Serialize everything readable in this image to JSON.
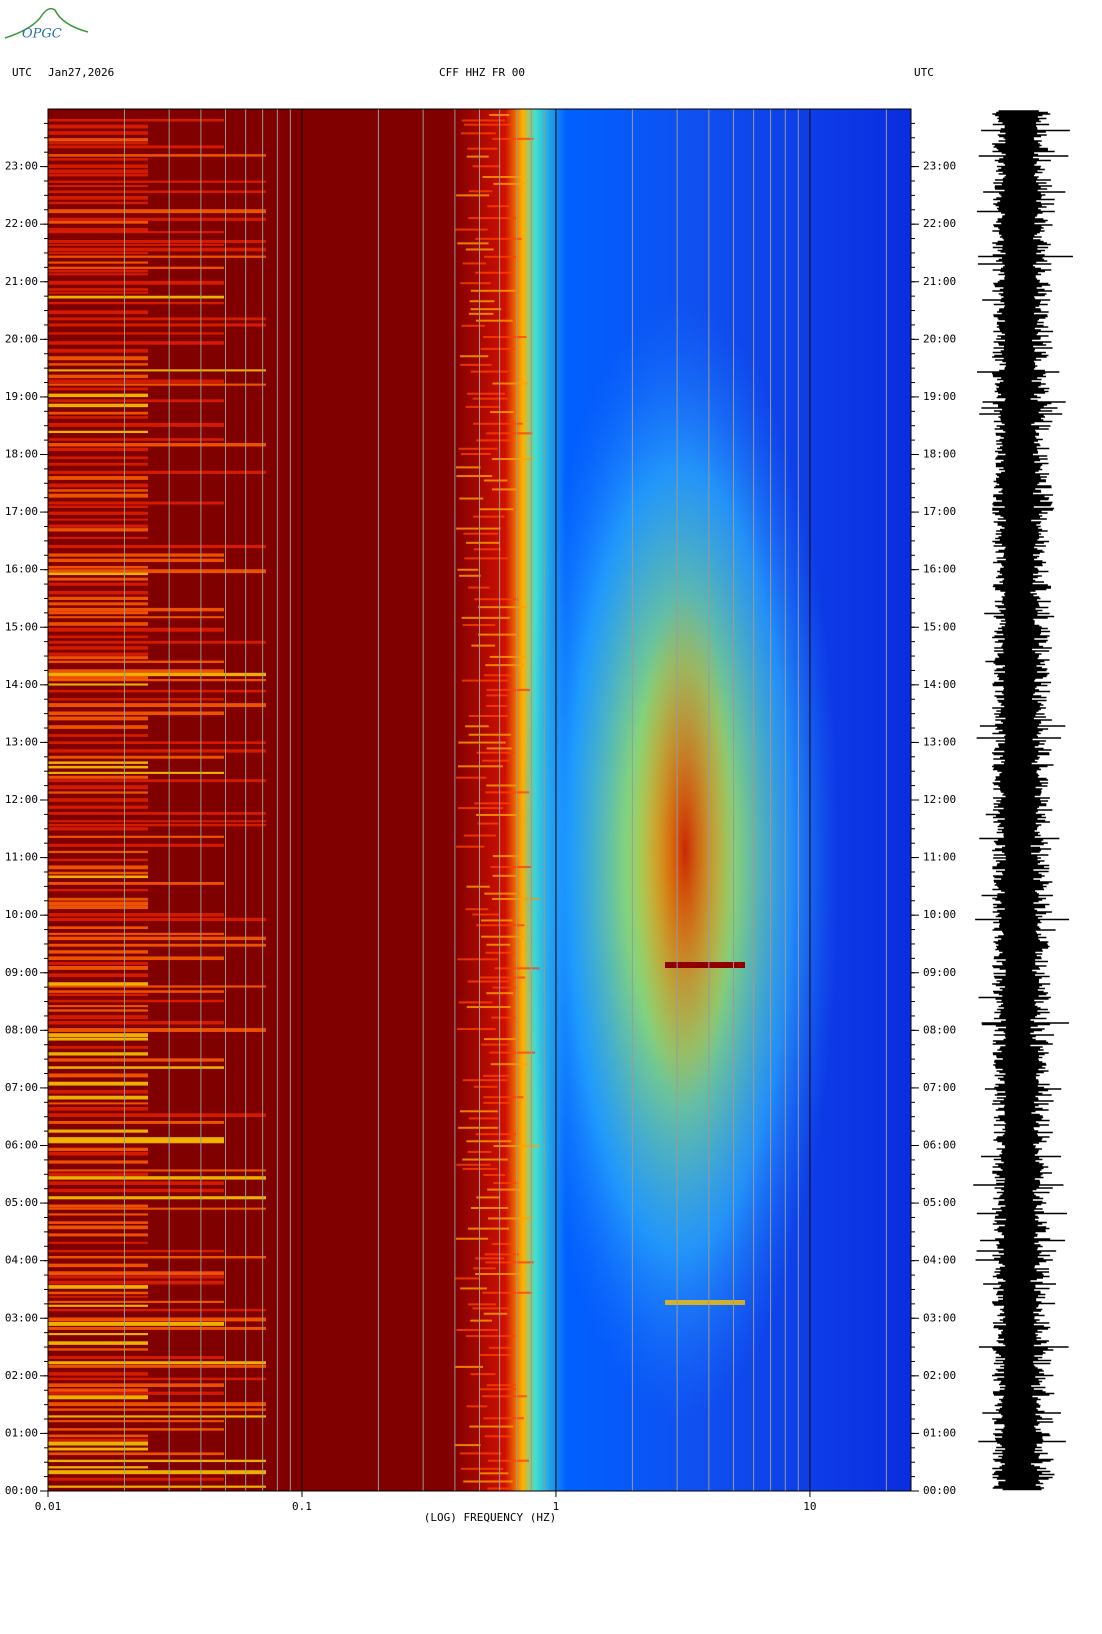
{
  "logo": "OPGC",
  "chart_data": {
    "type": "spectrogram",
    "title": "CFF HHZ FR 00",
    "left_label": "UTC",
    "date": "Jan27,2026",
    "right_label": "UTC",
    "x_label": "(LOG) FREQUENCY (HZ)",
    "xscale": "log",
    "xlim": [
      0.01,
      25
    ],
    "xticks": [
      {
        "value": 0.01,
        "label": "0.01"
      },
      {
        "value": 0.1,
        "label": "0.1"
      },
      1,
      10
    ],
    "ylim": [
      0,
      24
    ],
    "yticks": [
      {
        "value": 0,
        "label": "00:00"
      },
      {
        "value": 1,
        "label": "01:00"
      },
      {
        "value": 2,
        "label": "02:00"
      },
      {
        "value": 3,
        "label": "03:00"
      },
      {
        "value": 4,
        "label": "04:00"
      },
      {
        "value": 5,
        "label": "05:00"
      },
      {
        "value": 6,
        "label": "06:00"
      },
      {
        "value": 7,
        "label": "07:00"
      },
      {
        "value": 8,
        "label": "08:00"
      },
      {
        "value": 9,
        "label": "09:00"
      },
      {
        "value": 10,
        "label": "10:00"
      },
      {
        "value": 11,
        "label": "11:00"
      },
      {
        "value": 12,
        "label": "12:00"
      },
      {
        "value": 13,
        "label": "13:00"
      },
      {
        "value": 14,
        "label": "14:00"
      },
      {
        "value": 15,
        "label": "15:00"
      },
      {
        "value": 16,
        "label": "16:00"
      },
      {
        "value": 17,
        "label": "17:00"
      },
      {
        "value": 18,
        "label": "18:00"
      },
      {
        "value": 19,
        "label": "19:00"
      },
      {
        "value": 20,
        "label": "20:00"
      },
      {
        "value": 21,
        "label": "21:00"
      },
      {
        "value": 22,
        "label": "22:00"
      },
      {
        "value": 23,
        "label": "23:00"
      }
    ]
  }
}
